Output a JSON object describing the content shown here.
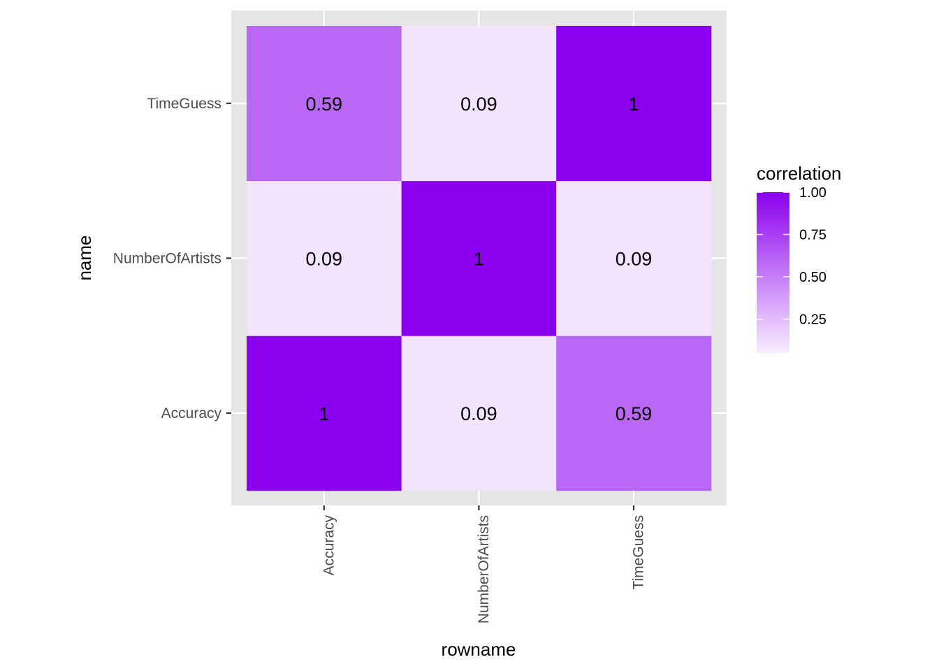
{
  "chart_data": {
    "type": "heatmap",
    "x_categories": [
      "Accuracy",
      "NumberOfArtists",
      "TimeGuess"
    ],
    "y_categories": [
      "Accuracy",
      "NumberOfArtists",
      "TimeGuess"
    ],
    "cells": [
      {
        "x": "Accuracy",
        "y": "Accuracy",
        "value": 1,
        "label": "1"
      },
      {
        "x": "NumberOfArtists",
        "y": "Accuracy",
        "value": 0.09,
        "label": "0.09"
      },
      {
        "x": "TimeGuess",
        "y": "Accuracy",
        "value": 0.59,
        "label": "0.59"
      },
      {
        "x": "Accuracy",
        "y": "NumberOfArtists",
        "value": 0.09,
        "label": "0.09"
      },
      {
        "x": "NumberOfArtists",
        "y": "NumberOfArtists",
        "value": 1,
        "label": "1"
      },
      {
        "x": "TimeGuess",
        "y": "NumberOfArtists",
        "value": 0.09,
        "label": "0.09"
      },
      {
        "x": "Accuracy",
        "y": "TimeGuess",
        "value": 0.59,
        "label": "0.59"
      },
      {
        "x": "NumberOfArtists",
        "y": "TimeGuess",
        "value": 0.09,
        "label": "0.09"
      },
      {
        "x": "TimeGuess",
        "y": "TimeGuess",
        "value": 1,
        "label": "1"
      }
    ],
    "xlabel": "rowname",
    "ylabel": "name",
    "legend": {
      "title": "correlation",
      "placement": "right",
      "range": [
        0.05,
        1.0
      ],
      "ticks": [
        1.0,
        0.75,
        0.5,
        0.25
      ],
      "tick_labels": [
        "1.00",
        "0.75",
        "0.50",
        "0.25"
      ]
    },
    "colors": {
      "low": "#f8eeff",
      "high": "#8b00ee",
      "panel_background": "#e5e5e5",
      "grid": "#ffffff"
    },
    "grid": true
  }
}
